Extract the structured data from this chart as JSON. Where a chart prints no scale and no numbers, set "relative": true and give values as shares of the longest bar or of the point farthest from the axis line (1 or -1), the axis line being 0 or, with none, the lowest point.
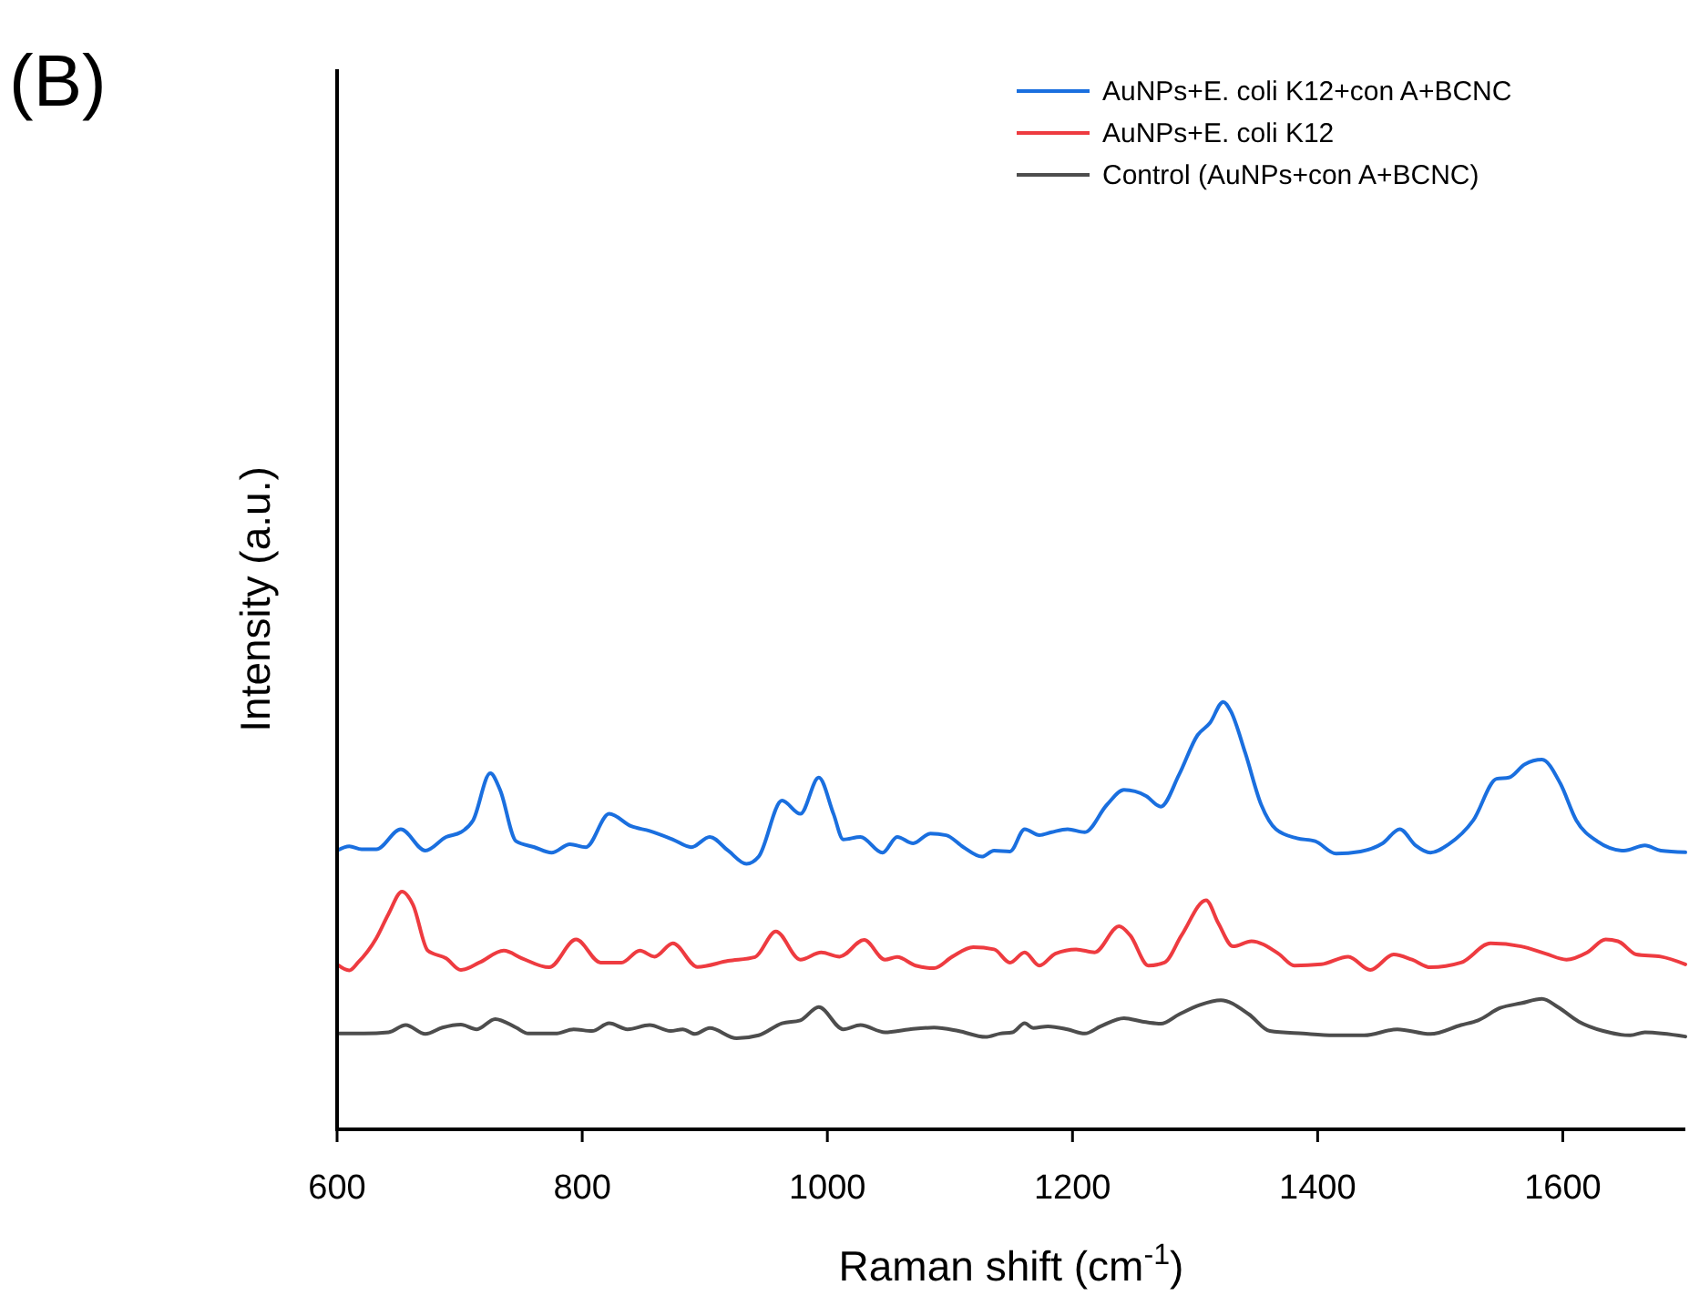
{
  "chart_data": {
    "type": "line",
    "xlabel": "Raman shift (cm$^{-1}$)",
    "ylabel": "Intensity (a.u.)",
    "annotations": [
      "(B)"
    ],
    "relative": true,
    "xlim": [
      600,
      1700
    ],
    "xticks": [
      600,
      800,
      1000,
      1200,
      1400,
      1600
    ],
    "legend": "top right",
    "grid": false,
    "marker": "none",
    "line_style": "solid",
    "series": [
      {
        "name": "AuNPs+E. coli K12+con A+BCNC",
        "color": "#1a6fdf",
        "x": [
          600,
          610,
          620,
          632,
          652,
          672,
          689,
          701,
          711,
          725,
          733,
          746,
          761,
          775,
          790,
          803,
          822,
          840,
          855,
          874,
          889,
          904,
          919,
          934,
          944,
          963,
          978,
          993,
          1005,
          1013,
          1027,
          1045,
          1057,
          1070,
          1084,
          1097,
          1111,
          1126,
          1136,
          1149,
          1161,
          1173,
          1183,
          1196,
          1210,
          1228,
          1242,
          1260,
          1272,
          1287,
          1302,
          1312,
          1323,
          1329,
          1341,
          1354,
          1366,
          1383,
          1398,
          1415,
          1435,
          1453,
          1467,
          1480,
          1492,
          1507,
          1527,
          1546,
          1556,
          1569,
          1583,
          1598,
          1611,
          1628,
          1650,
          1667,
          1680,
          1700
        ],
        "values": [
          0.652,
          0.662,
          0.655,
          0.655,
          0.702,
          0.652,
          0.684,
          0.695,
          0.723,
          0.833,
          0.794,
          0.674,
          0.66,
          0.647,
          0.667,
          0.66,
          0.738,
          0.709,
          0.698,
          0.678,
          0.66,
          0.684,
          0.652,
          0.621,
          0.638,
          0.769,
          0.738,
          0.823,
          0.738,
          0.678,
          0.684,
          0.647,
          0.684,
          0.669,
          0.692,
          0.688,
          0.66,
          0.638,
          0.652,
          0.65,
          0.702,
          0.688,
          0.695,
          0.702,
          0.695,
          0.759,
          0.794,
          0.78,
          0.755,
          0.83,
          0.922,
          0.95,
          1.0,
          0.979,
          0.88,
          0.759,
          0.702,
          0.681,
          0.674,
          0.645,
          0.65,
          0.669,
          0.702,
          0.664,
          0.647,
          0.667,
          0.723,
          0.82,
          0.823,
          0.854,
          0.865,
          0.809,
          0.723,
          0.674,
          0.652,
          0.664,
          0.652,
          0.648
        ]
      },
      {
        "name": "AuNPs+E. coli K12",
        "color": "#ee3b40",
        "x": [
          600,
          610,
          617,
          632,
          642,
          653,
          662,
          674,
          689,
          701,
          716,
          736,
          751,
          773,
          795,
          815,
          832,
          847,
          859,
          874,
          894,
          919,
          941,
          958,
          978,
          995,
          1010,
          1030,
          1047,
          1057,
          1072,
          1087,
          1102,
          1119,
          1136,
          1149,
          1161,
          1173,
          1186,
          1203,
          1218,
          1238,
          1247,
          1262,
          1275,
          1289,
          1309,
          1319,
          1331,
          1346,
          1368,
          1381,
          1403,
          1425,
          1443,
          1462,
          1477,
          1492,
          1517,
          1541,
          1566,
          1586,
          1603,
          1620,
          1635,
          1645,
          1660,
          1680,
          1700
        ],
        "values": [
          0.386,
          0.372,
          0.39,
          0.447,
          0.504,
          0.556,
          0.525,
          0.418,
          0.4,
          0.373,
          0.39,
          0.418,
          0.4,
          0.379,
          0.444,
          0.39,
          0.39,
          0.418,
          0.404,
          0.435,
          0.38,
          0.394,
          0.403,
          0.463,
          0.397,
          0.414,
          0.404,
          0.443,
          0.397,
          0.403,
          0.383,
          0.377,
          0.404,
          0.426,
          0.421,
          0.39,
          0.414,
          0.383,
          0.411,
          0.421,
          0.414,
          0.475,
          0.454,
          0.383,
          0.39,
          0.454,
          0.536,
          0.482,
          0.428,
          0.44,
          0.411,
          0.383,
          0.386,
          0.404,
          0.373,
          0.409,
          0.397,
          0.379,
          0.39,
          0.435,
          0.428,
          0.411,
          0.397,
          0.414,
          0.444,
          0.44,
          0.409,
          0.404,
          0.386
        ]
      },
      {
        "name": "Control (AuNPs+con A+BCNC)",
        "color": "#4d4d4d",
        "x": [
          600,
          622,
          642,
          656,
          672,
          686,
          701,
          714,
          729,
          746,
          756,
          778,
          793,
          808,
          822,
          837,
          855,
          872,
          882,
          892,
          904,
          926,
          944,
          963,
          978,
          993,
          1013,
          1027,
          1047,
          1067,
          1087,
          1107,
          1129,
          1141,
          1151,
          1161,
          1168,
          1180,
          1196,
          1210,
          1223,
          1242,
          1257,
          1272,
          1287,
          1304,
          1321,
          1344,
          1361,
          1388,
          1413,
          1438,
          1465,
          1492,
          1517,
          1531,
          1549,
          1566,
          1583,
          1596,
          1613,
          1633,
          1655,
          1667,
          1700
        ],
        "values": [
          0.224,
          0.224,
          0.227,
          0.244,
          0.223,
          0.238,
          0.245,
          0.234,
          0.258,
          0.238,
          0.224,
          0.224,
          0.234,
          0.23,
          0.248,
          0.234,
          0.244,
          0.23,
          0.234,
          0.223,
          0.237,
          0.213,
          0.22,
          0.248,
          0.255,
          0.286,
          0.234,
          0.244,
          0.227,
          0.234,
          0.238,
          0.23,
          0.216,
          0.224,
          0.227,
          0.248,
          0.237,
          0.241,
          0.234,
          0.224,
          0.241,
          0.26,
          0.252,
          0.247,
          0.269,
          0.291,
          0.302,
          0.269,
          0.23,
          0.224,
          0.22,
          0.22,
          0.234,
          0.223,
          0.244,
          0.255,
          0.284,
          0.295,
          0.305,
          0.286,
          0.252,
          0.23,
          0.22,
          0.227,
          0.217
        ]
      }
    ]
  }
}
